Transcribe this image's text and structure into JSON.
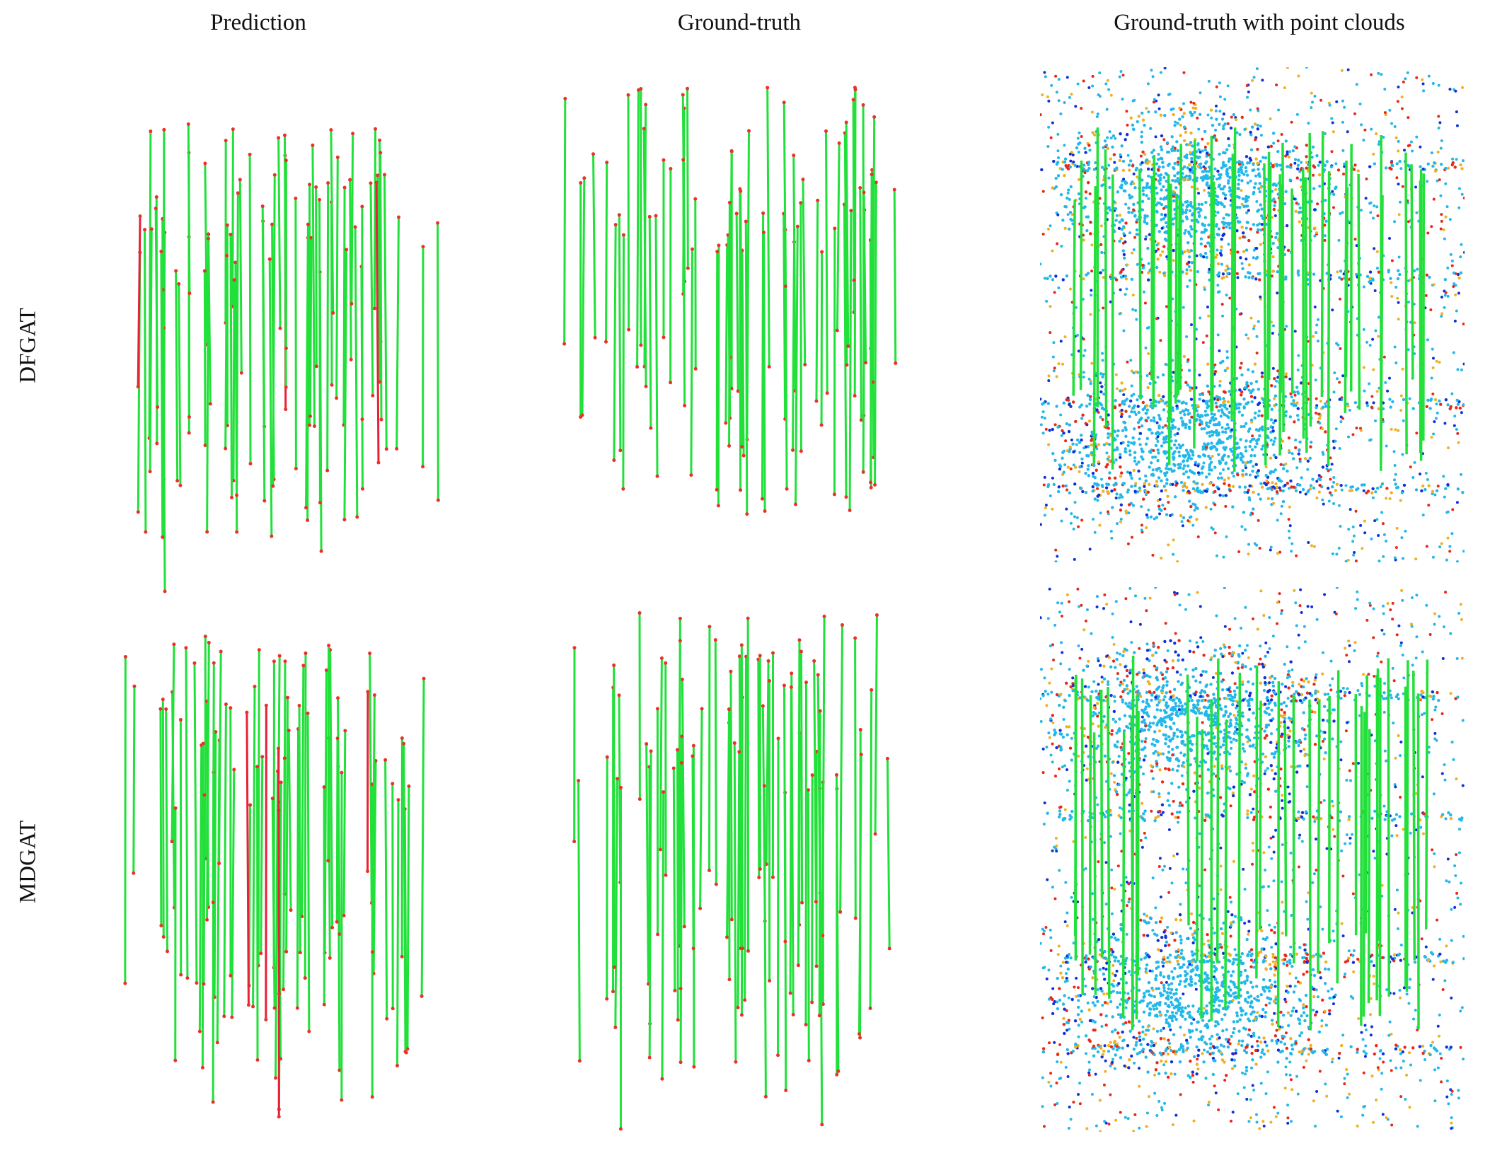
{
  "columns": [
    "Prediction",
    "Ground-truth",
    "Ground-truth with point clouds"
  ],
  "rows": [
    "DFGAT",
    "MDGAT"
  ],
  "colors": {
    "correct_match": "#22e03a",
    "wrong_match": "#e8203a",
    "keypoint": "#e8322a",
    "cloud_low": "#1030d8",
    "cloud_mid": "#22b8ea",
    "cloud_high": "#f0b020",
    "cloud_peak": "#e82818"
  }
}
